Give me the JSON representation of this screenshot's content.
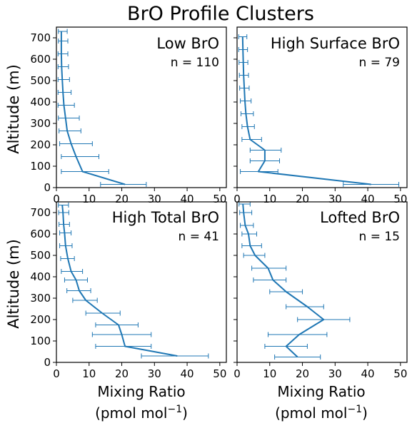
{
  "figure": {
    "title": "BrO Profile Clusters",
    "ylabel": "Altitude (m)",
    "xlabel_line1": "Mixing Ratio",
    "xlabel_unit_main": "(pmol mol",
    "xlabel_unit_sup": "−1",
    "xlabel_unit_end": ")",
    "line_color": "#1f77b4"
  },
  "chart_data": [
    {
      "type": "line",
      "title": "Low BrO",
      "annotation": "n = 110",
      "xlabel": "Mixing Ratio (pmol mol−1)",
      "ylabel": "Altitude (m)",
      "xlim": [
        0,
        52
      ],
      "ylim": [
        0,
        750
      ],
      "xticks": [
        0,
        10,
        20,
        30,
        40,
        50
      ],
      "yticks": [
        0,
        100,
        200,
        300,
        400,
        500,
        600,
        700
      ],
      "series": [
        {
          "y": [
            15,
            75,
            145,
            205,
            265,
            325,
            385,
            445,
            505,
            565,
            625,
            685,
            730
          ],
          "x": [
            21,
            8,
            6,
            4.5,
            3.3,
            2.8,
            2.3,
            2.0,
            1.8,
            1.6,
            1.5,
            1.5,
            1.5
          ],
          "x_err_low": [
            13.5,
            1.5,
            1.5,
            1,
            0.8,
            0.6,
            0.5,
            0.5,
            0.5,
            0.5,
            0.5,
            0.6,
            0.6
          ],
          "x_err_high": [
            27.5,
            16,
            13,
            11,
            7.5,
            7,
            5.5,
            4.5,
            4,
            3.7,
            3.5,
            3.5,
            3.3
          ]
        }
      ]
    },
    {
      "type": "line",
      "title": "High Surface BrO",
      "annotation": "n = 79",
      "xlabel": "Mixing Ratio (pmol mol−1)",
      "ylabel": "",
      "xlim": [
        0,
        52
      ],
      "ylim": [
        0,
        750
      ],
      "xticks": [
        0,
        10,
        20,
        30,
        40,
        50
      ],
      "yticks": [
        0,
        100,
        200,
        300,
        400,
        500,
        600,
        700
      ],
      "series": [
        {
          "y": [
            15,
            75,
            125,
            175,
            225,
            285,
            345,
            405,
            465,
            525,
            585,
            645,
            705
          ],
          "x": [
            41,
            6.5,
            8.5,
            8.5,
            4,
            3.2,
            2.7,
            2.4,
            2.2,
            2.0,
            1.9,
            1.8,
            1.7
          ],
          "x_err_low": [
            32.5,
            1.0,
            4.0,
            4.0,
            1.5,
            1.5,
            1.2,
            1.0,
            0.8,
            0.7,
            0.6,
            0.5,
            0.5
          ],
          "x_err_high": [
            49.5,
            12.5,
            13,
            13.5,
            7.5,
            5.3,
            5.0,
            4.3,
            3.7,
            3.5,
            3.3,
            3.2,
            3.0
          ]
        }
      ]
    },
    {
      "type": "line",
      "title": "High Total BrO",
      "annotation": "n = 41",
      "xlabel": "Mixing Ratio (pmol mol−1)",
      "ylabel": "Altitude (m)",
      "xlim": [
        0,
        52
      ],
      "ylim": [
        0,
        750
      ],
      "xticks": [
        0,
        10,
        20,
        30,
        40,
        50
      ],
      "yticks": [
        0,
        100,
        200,
        300,
        400,
        500,
        600,
        700
      ],
      "series": [
        {
          "y": [
            30,
            75,
            130,
            175,
            230,
            290,
            335,
            385,
            425,
            485,
            545,
            605,
            645,
            700,
            735
          ],
          "x": [
            37,
            21,
            20,
            19,
            14,
            9,
            7,
            6,
            4.5,
            3.5,
            2.8,
            2.5,
            2.2,
            2.0,
            1.8
          ],
          "x_err_low": [
            26,
            12,
            11,
            12,
            9,
            5,
            3.2,
            2.5,
            1.5,
            1.3,
            1.0,
            1.0,
            0.8,
            0.7,
            0.6
          ],
          "x_err_high": [
            46.5,
            29,
            29,
            25,
            19.5,
            12.5,
            10.5,
            9.5,
            8,
            5.5,
            4.8,
            4.5,
            4.0,
            3.8,
            3.7
          ]
        }
      ]
    },
    {
      "type": "line",
      "title": "Lofted BrO",
      "annotation": "n = 15",
      "xlabel": "Mixing Ratio (pmol mol−1)",
      "ylabel": "",
      "xlim": [
        0,
        52
      ],
      "ylim": [
        0,
        750
      ],
      "xticks": [
        0,
        10,
        20,
        30,
        40,
        50
      ],
      "yticks": [
        0,
        100,
        200,
        300,
        400,
        500,
        600,
        700
      ],
      "series": [
        {
          "y": [
            25,
            75,
            130,
            200,
            260,
            330,
            385,
            440,
            500,
            545,
            600,
            640,
            700,
            740
          ],
          "x": [
            18.5,
            15,
            19,
            26.5,
            21.5,
            15,
            11,
            9.5,
            5.5,
            4.0,
            3.5,
            2.5,
            2.0,
            1.8
          ],
          "x_err_low": [
            11.5,
            8.5,
            9.5,
            18.5,
            15,
            10,
            5,
            4.5,
            2.0,
            1.5,
            1.5,
            1.0,
            0.8,
            0.6
          ],
          "x_err_high": [
            25.5,
            21.5,
            27.5,
            34.5,
            26.5,
            20,
            15,
            15,
            8.5,
            7.5,
            6.0,
            5.0,
            4.5,
            4.0
          ]
        }
      ]
    }
  ]
}
